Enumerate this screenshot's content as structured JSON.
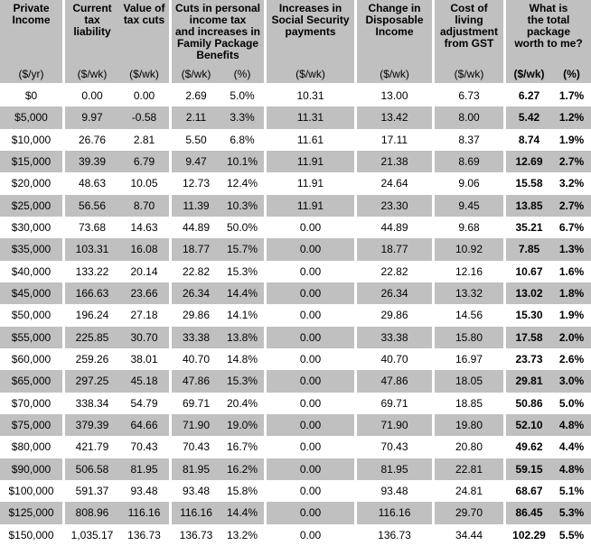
{
  "chart_data": {
    "type": "table",
    "column_keys": [
      "private_income",
      "current_tax_liability",
      "value_of_tax_cuts",
      "cuts_income_tax_family_package_wk",
      "cuts_income_tax_family_package_pct",
      "increases_social_security_wk",
      "change_disposable_income_wk",
      "gst_cost_of_living_wk",
      "total_package_worth_wk",
      "total_package_worth_pct"
    ],
    "headers": {
      "private_income": {
        "title": "Private\nIncome",
        "unit": "($/yr)"
      },
      "current_tax_liability": {
        "title": "Current\ntax\nliability",
        "unit": "($/wk)"
      },
      "value_of_tax_cuts": {
        "title": "Value of\ntax cuts",
        "unit": "($/wk)"
      },
      "cuts_family_package": {
        "title": "Cuts in personal\nincome tax\nand increases in\nFamily Package\nBenefits",
        "unit_wk": "($/wk)",
        "unit_pct": "(%)"
      },
      "social_security": {
        "title": "Increases in\nSocial Security\npayments",
        "unit": "($/wk)"
      },
      "disposable_income": {
        "title": "Change in\nDisposable\nIncome",
        "unit": "($/wk)"
      },
      "gst_adjustment": {
        "title": "Cost of\nliving\nadjustment\nfrom GST",
        "unit": "($/wk)"
      },
      "total_package": {
        "title": "What is\nthe total\npackage\nworth to me?",
        "unit_wk": "($/wk)",
        "unit_pct": "(%)"
      }
    },
    "rows": [
      [
        "$0",
        "0.00",
        "0.00",
        "2.69",
        "5.0%",
        "10.31",
        "13.00",
        "6.73",
        "6.27",
        "1.7%"
      ],
      [
        "$5,000",
        "9.97",
        "-0.58",
        "2.11",
        "3.3%",
        "11.31",
        "13.42",
        "8.00",
        "5.42",
        "1.2%"
      ],
      [
        "$10,000",
        "26.76",
        "2.81",
        "5.50",
        "6.8%",
        "11.61",
        "17.11",
        "8.37",
        "8.74",
        "1.9%"
      ],
      [
        "$15,000",
        "39.39",
        "6.79",
        "9.47",
        "10.1%",
        "11.91",
        "21.38",
        "8.69",
        "12.69",
        "2.7%"
      ],
      [
        "$20,000",
        "48.63",
        "10.05",
        "12.73",
        "12.4%",
        "11.91",
        "24.64",
        "9.06",
        "15.58",
        "3.2%"
      ],
      [
        "$25,000",
        "56.56",
        "8.70",
        "11.39",
        "10.3%",
        "11.91",
        "23.30",
        "9.45",
        "13.85",
        "2.7%"
      ],
      [
        "$30,000",
        "73.68",
        "14.63",
        "44.89",
        "50.0%",
        "0.00",
        "44.89",
        "9.68",
        "35.21",
        "6.7%"
      ],
      [
        "$35,000",
        "103.31",
        "16.08",
        "18.77",
        "15.7%",
        "0.00",
        "18.77",
        "10.92",
        "7.85",
        "1.3%"
      ],
      [
        "$40,000",
        "133.22",
        "20.14",
        "22.82",
        "15.3%",
        "0.00",
        "22.82",
        "12.16",
        "10.67",
        "1.6%"
      ],
      [
        "$45,000",
        "166.63",
        "23.66",
        "26.34",
        "14.4%",
        "0.00",
        "26.34",
        "13.32",
        "13.02",
        "1.8%"
      ],
      [
        "$50,000",
        "196.24",
        "27.18",
        "29.86",
        "14.1%",
        "0.00",
        "29.86",
        "14.56",
        "15.30",
        "1.9%"
      ],
      [
        "$55,000",
        "225.85",
        "30.70",
        "33.38",
        "13.8%",
        "0.00",
        "33.38",
        "15.80",
        "17.58",
        "2.0%"
      ],
      [
        "$60,000",
        "259.26",
        "38.01",
        "40.70",
        "14.8%",
        "0.00",
        "40.70",
        "16.97",
        "23.73",
        "2.6%"
      ],
      [
        "$65,000",
        "297.25",
        "45.18",
        "47.86",
        "15.3%",
        "0.00",
        "47.86",
        "18.05",
        "29.81",
        "3.0%"
      ],
      [
        "$70,000",
        "338.34",
        "54.79",
        "69.71",
        "20.4%",
        "0.00",
        "69.71",
        "18.85",
        "50.86",
        "5.0%"
      ],
      [
        "$75,000",
        "379.39",
        "64.66",
        "71.90",
        "19.0%",
        "0.00",
        "71.90",
        "19.80",
        "52.10",
        "4.8%"
      ],
      [
        "$80,000",
        "421.79",
        "70.43",
        "70.43",
        "16.7%",
        "0.00",
        "70.43",
        "20.80",
        "49.62",
        "4.4%"
      ],
      [
        "$90,000",
        "506.58",
        "81.95",
        "81.95",
        "16.2%",
        "0.00",
        "81.95",
        "22.81",
        "59.15",
        "4.8%"
      ],
      [
        "$100,000",
        "591.37",
        "93.48",
        "93.48",
        "15.8%",
        "0.00",
        "93.48",
        "24.81",
        "68.67",
        "5.1%"
      ],
      [
        "$125,000",
        "808.96",
        "116.16",
        "116.16",
        "14.4%",
        "0.00",
        "116.16",
        "29.70",
        "86.45",
        "5.3%"
      ],
      [
        "$150,000",
        "1,035.17",
        "136.73",
        "136.73",
        "13.2%",
        "0.00",
        "136.73",
        "34.44",
        "102.29",
        "5.5%"
      ]
    ],
    "layout": {
      "legend": "none",
      "grid": "off",
      "striping": "alternate rows silver on white"
    }
  },
  "colors": {
    "header_bg": "#c0c0c0",
    "row_bg": "#ffffff",
    "row_alt_bg": "#c0c0c0",
    "text": "#000000"
  }
}
